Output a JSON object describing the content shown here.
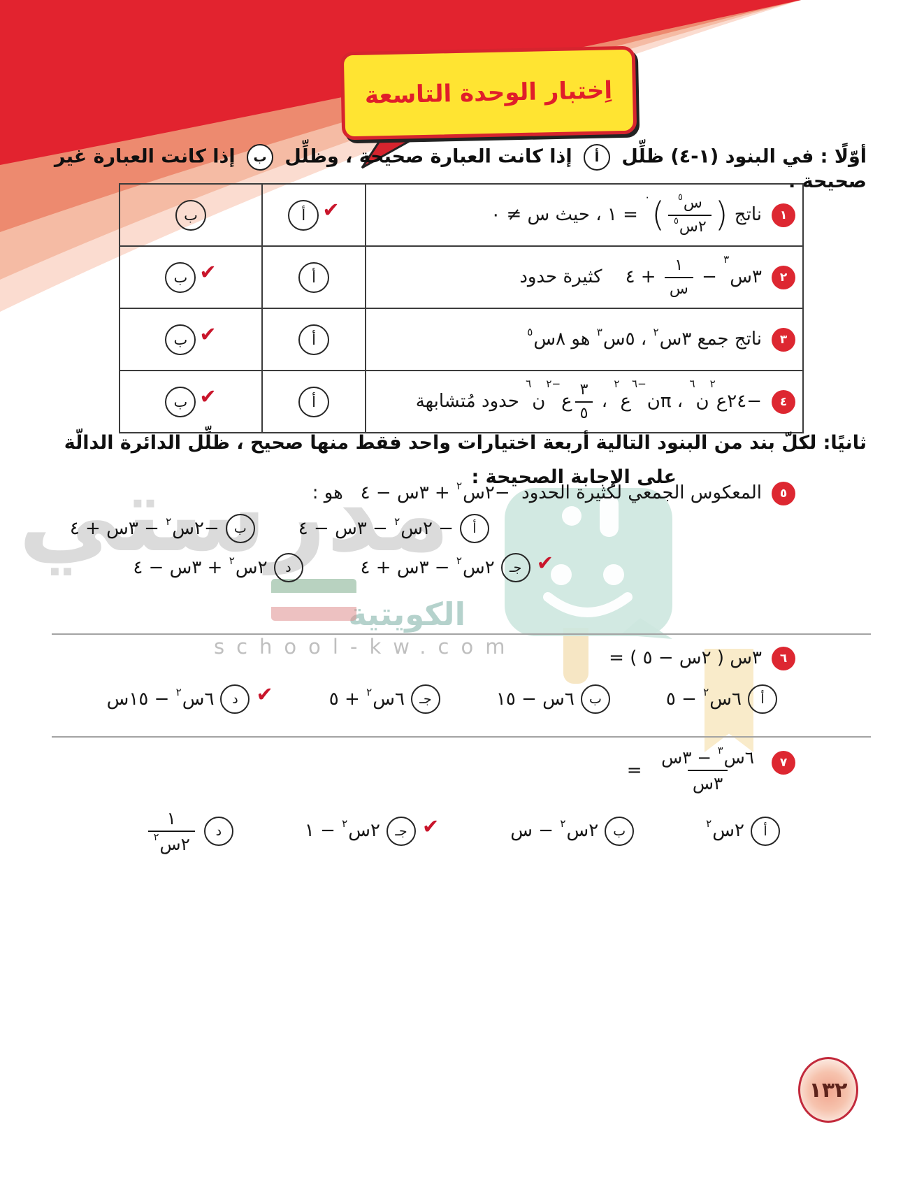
{
  "ui": {
    "check": "✔"
  },
  "colors": {
    "accent_red": "#dd2731",
    "bubble_yellow": "#ffe432",
    "check_red": "#c9152b",
    "teal_logo": "#cde7df"
  },
  "header": {
    "title": "اِختبار الوحدة التاسعة"
  },
  "page": {
    "number": "١٣٢"
  },
  "watermark": {
    "name": "مدرستي",
    "sub": "الكويتية",
    "site": "school-kw.com"
  },
  "section1": {
    "intro_before": "أوّلًا : في البنود (١-٤) ظلِّل",
    "circle_a": "أ",
    "intro_mid": "إذا كانت العبارة صحيحة ، وظلِّل",
    "circle_b": "ب",
    "intro_after": "إذا كانت العبارة غير صحيحة .",
    "col_a": "أ",
    "col_b": "ب",
    "items": [
      {
        "num": "١",
        "check_a": true,
        "check_b": false,
        "math": [
          [
            "t",
            "ناتج "
          ],
          [
            "pr",
            ")"
          ],
          [
            "f",
            [
              [
                "t",
                "س"
              ],
              [
                "s",
                "٥"
              ]
            ],
            [
              [
                "t",
                "٢س"
              ],
              [
                "s",
                "٥"
              ]
            ]
          ],
          [
            "pr",
            "("
          ],
          [
            "s",
            "٠"
          ],
          [
            "t",
            " = ١ ، حيث س ≠ ٠"
          ]
        ]
      },
      {
        "num": "٢",
        "check_a": false,
        "check_b": true,
        "math": [
          [
            "t",
            "٣س"
          ],
          [
            "s",
            "٣"
          ],
          [
            "t",
            " − "
          ],
          [
            "f",
            [
              [
                "t",
                "١"
              ]
            ],
            [
              [
                "t",
                "س"
              ]
            ]
          ],
          [
            "t",
            " + ٤    كثيرة حدود"
          ]
        ]
      },
      {
        "num": "٣",
        "check_a": false,
        "check_b": true,
        "math": [
          [
            "t",
            "ناتج جمع ٣س"
          ],
          [
            "s",
            "٢"
          ],
          [
            "t",
            " ، ٥س"
          ],
          [
            "s",
            "٣"
          ],
          [
            "t",
            " هو ٨س"
          ],
          [
            "s",
            "٥"
          ]
        ]
      },
      {
        "num": "٤",
        "check_a": false,
        "check_b": true,
        "math": [
          [
            "t",
            "−٢٤ع"
          ],
          [
            "s",
            "٢"
          ],
          [
            "t",
            "ن"
          ],
          [
            "s",
            "٦"
          ],
          [
            "t",
            " ، πن"
          ],
          [
            "s",
            "−٦"
          ],
          [
            "t",
            "ع"
          ],
          [
            "s",
            "٢"
          ],
          [
            "t",
            " ، "
          ],
          [
            "f",
            [
              [
                "t",
                "٣"
              ]
            ],
            [
              [
                "t",
                "٥"
              ]
            ]
          ],
          [
            "t",
            "ع"
          ],
          [
            "s",
            "−٢"
          ],
          [
            "t",
            "ن"
          ],
          [
            "s",
            "٦"
          ],
          [
            "t",
            " حدود مُتشابهة"
          ]
        ]
      }
    ]
  },
  "section2": {
    "intro_line1": "ثانيًا: لكلّ بند من البنود التالية أربعة اختيارات واحد فقط منها صحيح ، ظلِّل الدائرة الدالّة",
    "intro_line2": "على الإجابة الصحيحة :",
    "q5": {
      "num": "٥",
      "prompt": [
        [
          "t",
          "المعكوس الجمعي لكثيرة الحدود  −٢س"
        ],
        [
          "s",
          "٢"
        ],
        [
          "t",
          " + ٣س − ٤   هو :"
        ]
      ],
      "options": [
        {
          "label": "أ",
          "checked": false,
          "math": [
            [
              "t",
              "− ٢س"
            ],
            [
              "s",
              "٢"
            ],
            [
              "t",
              " − ٣س − ٤"
            ]
          ]
        },
        {
          "label": "ب",
          "checked": false,
          "math": [
            [
              "t",
              "−٢س"
            ],
            [
              "s",
              "٢"
            ],
            [
              "t",
              " − ٣س + ٤"
            ]
          ]
        },
        {
          "label": "جـ",
          "checked": true,
          "math": [
            [
              "t",
              "٢س"
            ],
            [
              "s",
              "٢"
            ],
            [
              "t",
              " − ٣س + ٤"
            ]
          ]
        },
        {
          "label": "د",
          "checked": false,
          "math": [
            [
              "t",
              "٢س"
            ],
            [
              "s",
              "٢"
            ],
            [
              "t",
              " + ٣س − ٤"
            ]
          ]
        }
      ]
    },
    "q6": {
      "num": "٦",
      "prompt": [
        [
          "t",
          "٣س ( ٢س − ٥ ) ="
        ]
      ],
      "options": [
        {
          "label": "أ",
          "checked": false,
          "math": [
            [
              "t",
              "٦س"
            ],
            [
              "s",
              "٢"
            ],
            [
              "t",
              " − ٥"
            ]
          ]
        },
        {
          "label": "ب",
          "checked": false,
          "math": [
            [
              "t",
              "٦س − ١٥"
            ]
          ]
        },
        {
          "label": "جـ",
          "checked": false,
          "math": [
            [
              "t",
              "٦س"
            ],
            [
              "s",
              "٢"
            ],
            [
              "t",
              " + ٥"
            ]
          ]
        },
        {
          "label": "د",
          "checked": true,
          "math": [
            [
              "t",
              "٦س"
            ],
            [
              "s",
              "٢"
            ],
            [
              "t",
              " − ١٥س"
            ]
          ]
        }
      ]
    },
    "q7": {
      "num": "٧",
      "prompt": [
        [
          "f",
          [
            [
              "t",
              "٦س"
            ],
            [
              "s",
              "٣"
            ],
            [
              "t",
              " − ٣س"
            ]
          ],
          [
            [
              "t",
              "٣س"
            ]
          ]
        ],
        [
          "t",
          "  ="
        ]
      ],
      "options": [
        {
          "label": "أ",
          "checked": false,
          "math": [
            [
              "t",
              "٢س"
            ],
            [
              "s",
              "٢"
            ]
          ]
        },
        {
          "label": "ب",
          "checked": false,
          "math": [
            [
              "t",
              "٢س"
            ],
            [
              "s",
              "٢"
            ],
            [
              "t",
              " − س"
            ]
          ]
        },
        {
          "label": "جـ",
          "checked": true,
          "math": [
            [
              "t",
              "٢س"
            ],
            [
              "s",
              "٢"
            ],
            [
              "t",
              " − ١"
            ]
          ]
        },
        {
          "label": "د",
          "checked": false,
          "math": [
            [
              "f",
              [
                [
                  "t",
                  "١"
                ]
              ],
              [
                [
                  "t",
                  "٢س"
                ],
                [
                  "s",
                  "٢"
                ]
              ]
            ]
          ]
        }
      ]
    }
  }
}
